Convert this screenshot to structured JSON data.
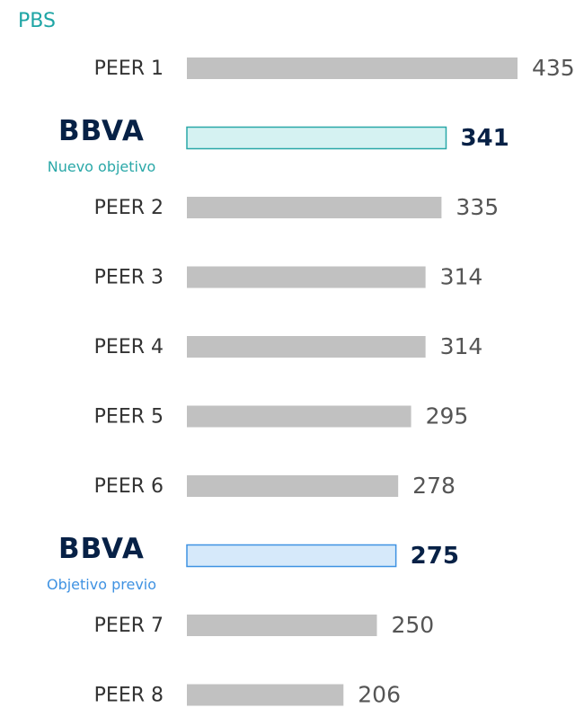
{
  "chart_data": {
    "type": "bar",
    "orientation": "horizontal",
    "title": "PBS",
    "categories": [
      "PEER 1",
      "BBVA",
      "PEER 2",
      "PEER 3",
      "PEER 4",
      "PEER 5",
      "PEER 6",
      "BBVA",
      "PEER 7",
      "PEER 8"
    ],
    "category_notes": [
      null,
      "Nuevo objetivo",
      null,
      null,
      null,
      null,
      null,
      "Objetivo previo",
      null,
      null
    ],
    "values": [
      435,
      341,
      335,
      314,
      314,
      295,
      278,
      275,
      250,
      206
    ],
    "colors": [
      "#c1c1c1",
      "#d5f2f2",
      "#c1c1c1",
      "#c1c1c1",
      "#c1c1c1",
      "#c1c1c1",
      "#c1c1c1",
      "#d6e9fa",
      "#c1c1c1",
      "#c1c1c1"
    ],
    "edge_colors": [
      null,
      "#2aa8a8",
      null,
      null,
      null,
      null,
      null,
      "#3f92e2",
      null,
      null
    ],
    "note_colors": [
      null,
      "#2aa8a8",
      null,
      null,
      null,
      null,
      null,
      "#3f92e2",
      null,
      null
    ]
  }
}
